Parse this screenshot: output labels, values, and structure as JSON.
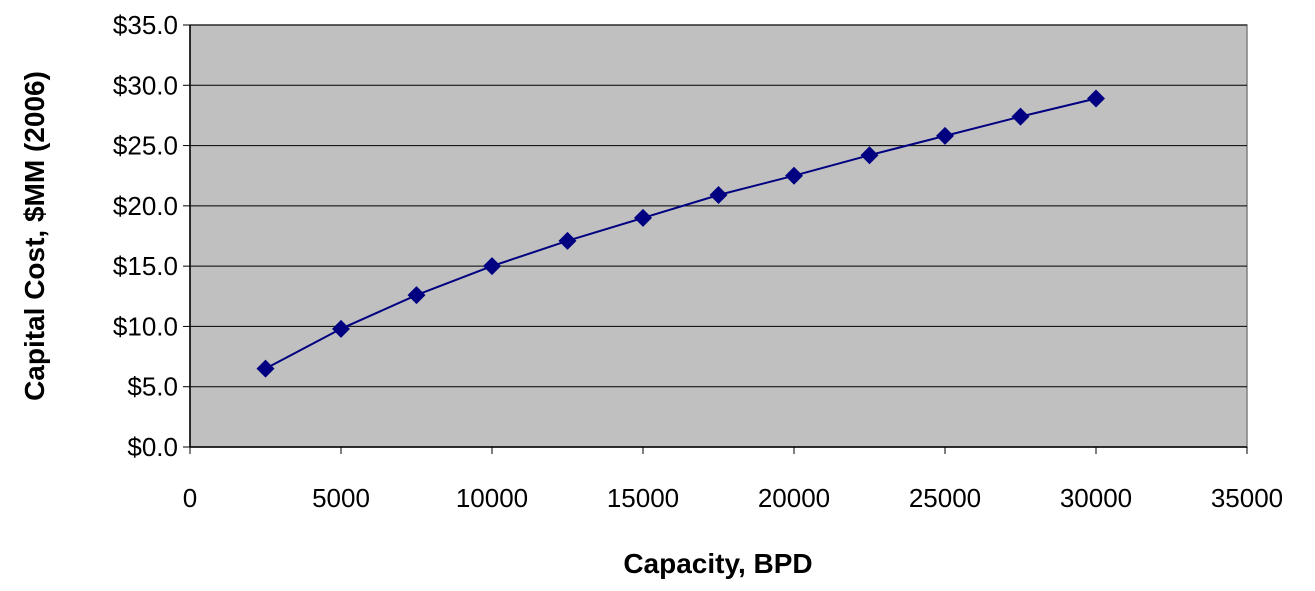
{
  "chart_data": {
    "type": "line",
    "title": "",
    "xlabel": "Capacity, BPD",
    "ylabel": "Capital Cost, $MM (2006)",
    "xlim": [
      0,
      35000
    ],
    "ylim": [
      0,
      35
    ],
    "x_ticks": [
      0,
      5000,
      10000,
      15000,
      20000,
      25000,
      30000,
      35000
    ],
    "x_tick_labels": [
      "0",
      "5000",
      "10000",
      "15000",
      "20000",
      "25000",
      "30000",
      "35000"
    ],
    "y_ticks": [
      0,
      5,
      10,
      15,
      20,
      25,
      30,
      35
    ],
    "y_tick_labels": [
      "$0.0",
      "$5.0",
      "$10.0",
      "$15.0",
      "$20.0",
      "$25.0",
      "$30.0",
      "$35.0"
    ],
    "grid": "horizontal",
    "legend": "none",
    "colors": {
      "plot_area": "#c0c0c0",
      "series": "#000080",
      "grid": "#000000"
    },
    "series": [
      {
        "marker": "diamond",
        "x": [
          2500,
          5000,
          7500,
          10000,
          12500,
          15000,
          17500,
          20000,
          22500,
          25000,
          27500,
          30000
        ],
        "y": [
          6.5,
          9.8,
          12.6,
          15.0,
          17.1,
          19.0,
          20.9,
          22.5,
          24.2,
          25.8,
          27.4,
          28.9
        ]
      }
    ]
  }
}
